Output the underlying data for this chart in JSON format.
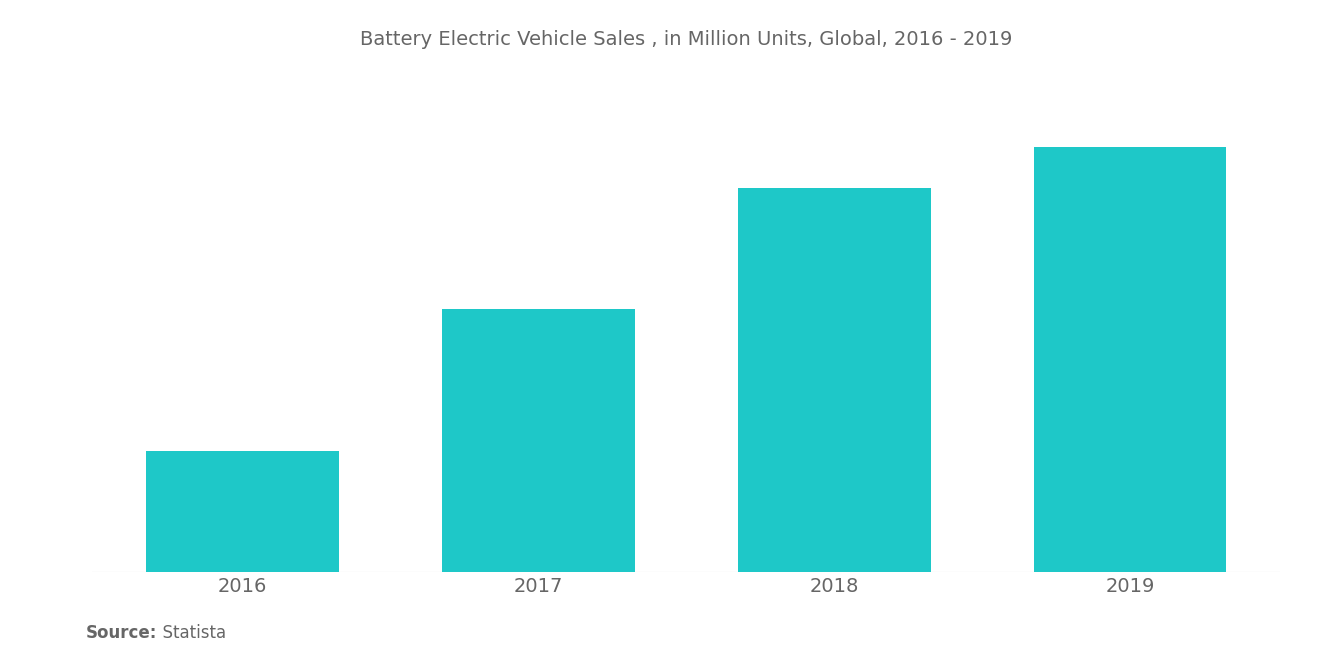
{
  "title": "Battery Electric Vehicle Sales , in Million Units, Global, 2016 - 2019",
  "categories": [
    "2016",
    "2017",
    "2018",
    "2019"
  ],
  "values": [
    0.29,
    0.63,
    0.92,
    1.02
  ],
  "bar_color": "#1EC8C8",
  "background_color": "#FFFFFF",
  "text_color": "#666666",
  "title_fontsize": 14,
  "tick_fontsize": 14,
  "source_label_bold": "Source:",
  "source_label_normal": "  Statista",
  "bar_width": 0.65,
  "ylim": [
    0,
    1.18
  ]
}
